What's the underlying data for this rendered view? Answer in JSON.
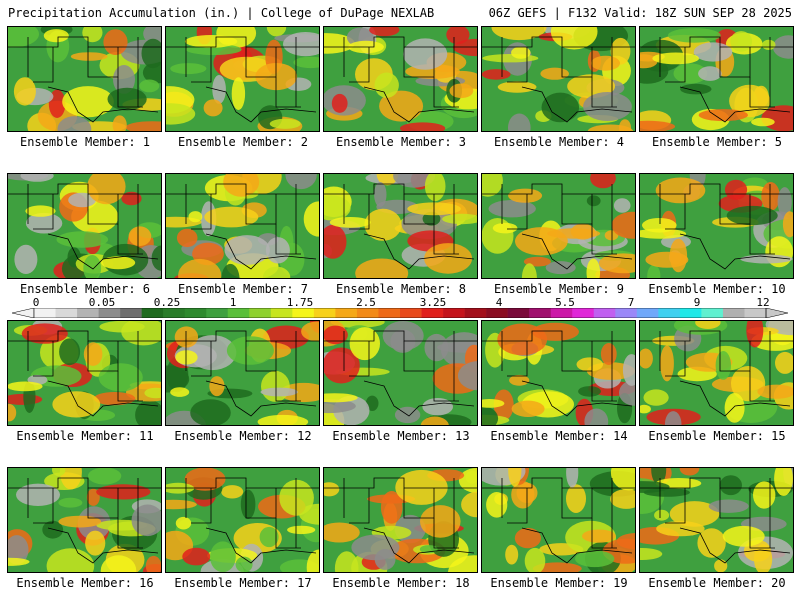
{
  "header": {
    "left": "Precipitation Accumulation (in.) | College of DuPage NEXLAB",
    "right": "06Z GEFS | F132 Valid: 18Z SUN SEP 28 2025"
  },
  "member_label_prefix": "Ensemble Member: ",
  "members": [
    "1",
    "2",
    "3",
    "4",
    "5",
    "6",
    "7",
    "8",
    "9",
    "10",
    "11",
    "12",
    "13",
    "14",
    "15",
    "16",
    "17",
    "18",
    "19",
    "20"
  ],
  "colorbar": {
    "ticks": [
      "0",
      "0.05",
      "0.25",
      "1",
      "1.75",
      "2.5",
      "3.25",
      "4",
      "5.5",
      "7",
      "9",
      "12"
    ],
    "colors": [
      "#f2f2f2",
      "#d9d9d9",
      "#b3b3b3",
      "#8c8c8c",
      "#6e6e6e",
      "#1f6b1f",
      "#2a7d2a",
      "#2f8a2f",
      "#3fa03f",
      "#5abf3a",
      "#8fd12e",
      "#c7e51f",
      "#f5f51a",
      "#f7d11a",
      "#f5a818",
      "#f28a18",
      "#ee6a18",
      "#e84a1c",
      "#e0201c",
      "#c4141c",
      "#a3101c",
      "#8a0d22",
      "#7a0a3a",
      "#a0106e",
      "#cc18a8",
      "#e028d8",
      "#c060f0",
      "#9a88f8",
      "#70a8fa",
      "#40d0f0",
      "#20e8e8",
      "#60f0d0",
      "#b0b0b0",
      "#c8c8c8"
    ]
  }
}
